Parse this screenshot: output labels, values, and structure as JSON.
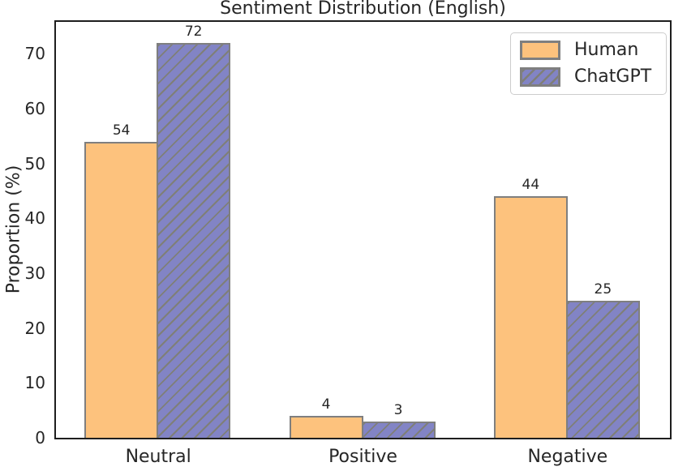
{
  "chart_data": {
    "type": "bar",
    "title": "Sentiment Distribution (English)",
    "xlabel": "",
    "ylabel": "Proportion (%)",
    "categories": [
      "Neutral",
      "Positive",
      "Negative"
    ],
    "series": [
      {
        "name": "Human",
        "values": [
          54,
          4,
          44
        ],
        "fill": "#FDC27D",
        "hatch": "none"
      },
      {
        "name": "ChatGPT",
        "values": [
          72,
          3,
          25
        ],
        "fill": "#8284C5",
        "hatch": "diagonal"
      }
    ],
    "bar_value_labels": [
      [
        54,
        4,
        44
      ],
      [
        72,
        3,
        25
      ]
    ],
    "ylim": [
      0,
      75.8
    ],
    "yticks": [
      0,
      10,
      20,
      30,
      40,
      50,
      60,
      70
    ],
    "grid": false,
    "legend_position": "upper right",
    "colors": {
      "bar_edge": "#7f7f7f",
      "hatch_line": "#7f7f78",
      "axis_spine": "#1e1e1e",
      "text": "#262626",
      "legend_border": "#cccccc"
    }
  }
}
